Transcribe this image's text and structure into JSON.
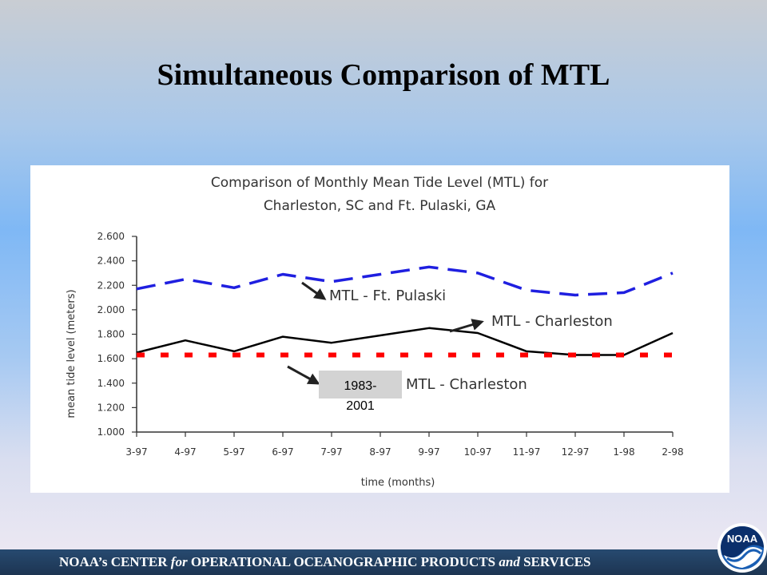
{
  "slide": {
    "title": "Simultaneous Comparison of MTL",
    "footer": {
      "part1": "NOAA’s CENTER ",
      "part2": "for",
      "part3": " OPERATIONAL OCEANOGRAPHIC PRODUCTS ",
      "part4": "and",
      "part5": " SERVICES"
    },
    "logo_text": "NOAA"
  },
  "colors": {
    "pulaski": "#1f1fe0",
    "charleston": "#000000",
    "longterm": "#ff0000",
    "note_box": "#d3d3d3"
  },
  "chart_data": {
    "type": "line",
    "title": "Comparison of Monthly Mean Tide Level (MTL) for",
    "subtitle": "Charleston, SC and Ft. Pulaski, GA",
    "xlabel": "time (months)",
    "ylabel": "mean tide level (meters)",
    "categories": [
      "3-97",
      "4-97",
      "5-97",
      "6-97",
      "7-97",
      "8-97",
      "9-97",
      "10-97",
      "11-97",
      "12-97",
      "1-98",
      "2-98"
    ],
    "ylim": [
      1.0,
      2.6
    ],
    "yticks": [
      "1.000",
      "1.200",
      "1.400",
      "1.600",
      "1.800",
      "2.000",
      "2.200",
      "2.400",
      "2.600"
    ],
    "grid": false,
    "series": [
      {
        "name": "MTL - Ft. Pulaski",
        "style": "dashed",
        "values": [
          2.17,
          2.25,
          2.18,
          2.29,
          2.23,
          2.29,
          2.35,
          2.3,
          2.16,
          2.12,
          2.14,
          2.3
        ]
      },
      {
        "name": "MTL - Charleston",
        "style": "solid",
        "values": [
          1.65,
          1.75,
          1.66,
          1.78,
          1.73,
          1.79,
          1.85,
          1.81,
          1.66,
          1.63,
          1.63,
          1.81
        ]
      },
      {
        "name": "MTL - Charleston",
        "style": "dotted",
        "values": [
          1.63,
          1.63,
          1.63,
          1.63,
          1.63,
          1.63,
          1.63,
          1.63,
          1.63,
          1.63,
          1.63,
          1.63
        ]
      }
    ],
    "annotations": {
      "pulaski_label": "MTL - Ft. Pulaski",
      "charleston_label": "MTL - Charleston",
      "longterm_label": "MTL - Charleston",
      "epoch_line1": "1983-",
      "epoch_line2": "2001"
    }
  }
}
